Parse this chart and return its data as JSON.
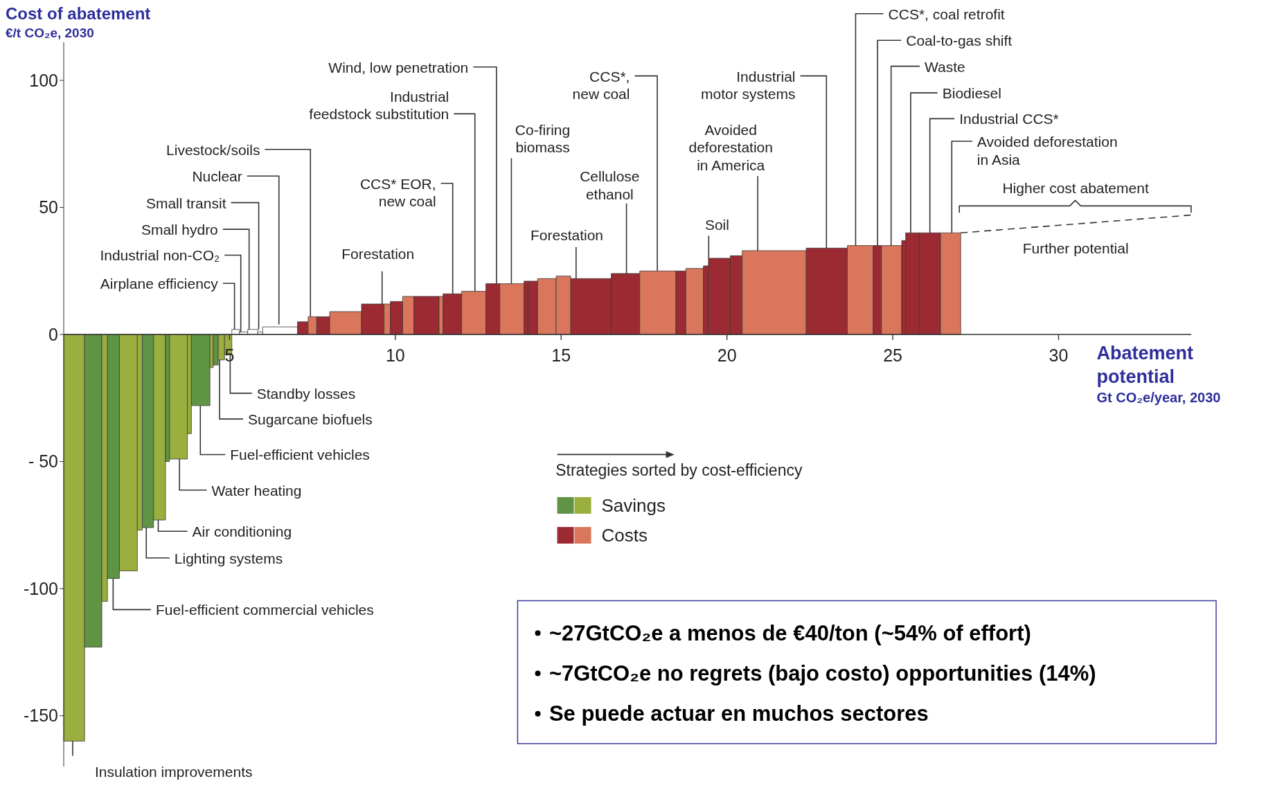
{
  "chart_data": {
    "type": "histogram",
    "ylabel": "Cost of abatement\n€/t CO₂e, 2030",
    "xlabel": "Abatement potential\nGt CO₂e/year, 2030",
    "xlim": [
      0,
      34
    ],
    "xticks": [
      5,
      10,
      15,
      20,
      25,
      30
    ],
    "ylim": [
      -170,
      115
    ],
    "yticks": [
      {
        "value": -150,
        "label": "-150"
      },
      {
        "value": -100,
        "label": "-100"
      },
      {
        "value": -50,
        "label": "- 50"
      },
      0,
      50,
      100
    ],
    "legend": "bottom",
    "series": [
      {
        "name": "Savings",
        "color": "#5e9444",
        "bins": [
          0,
          0.63,
          1.15,
          1.32,
          1.68,
          2.22,
          2.37,
          2.71,
          3.07,
          3.19,
          3.73,
          3.85,
          4.41,
          4.51,
          4.66,
          4.85,
          5.07
        ],
        "values": [
          -160,
          -123,
          -105,
          -96,
          -93,
          -77,
          -76,
          -73,
          -50,
          -49,
          -39,
          -28,
          -13,
          -12,
          -10,
          -8
        ],
        "colors": [
          "#9aaf3e",
          "#5e9444",
          "#9aaf3e",
          "#5e9444",
          "#9aaf3e",
          "#9aaf3e",
          "#5e9444",
          "#9aaf3e",
          "#5e9444",
          "#9aaf3e",
          "#9aaf3e",
          "#5e9444",
          "#9aaf3e",
          "#5e9444",
          "#9aaf3e",
          "#9aaf3e"
        ]
      },
      {
        "color": "#ffffff",
        "bins": [
          5.07,
          5.3,
          5.55,
          5.85,
          6.0,
          7.05
        ],
        "values": [
          2,
          1,
          2,
          1,
          3
        ]
      },
      {
        "name": "Costs",
        "color": "#9b2a32",
        "bins": [
          7.05,
          7.37,
          7.63,
          8.02,
          8.98,
          9.66,
          9.85,
          10.22,
          10.56,
          11.32,
          11.44,
          12.0,
          12.73,
          13.15,
          13.88,
          14.0,
          14.29,
          14.85,
          15.29,
          16.51,
          17.37,
          18.46,
          18.76,
          19.29,
          19.44,
          20.1,
          20.46,
          22.39,
          23.63,
          24.41,
          24.66,
          25.27,
          25.39,
          25.8,
          26.44,
          27.05
        ],
        "values": [
          5,
          7,
          7,
          9,
          12,
          12,
          13,
          15,
          15,
          15,
          16,
          17,
          20,
          20,
          21,
          21,
          22,
          23,
          22,
          24,
          25,
          25,
          26,
          27,
          30,
          31,
          33,
          34,
          35,
          35,
          35,
          37,
          40,
          40,
          40
        ],
        "colors": [
          "#9b2a32",
          "#d9765c",
          "#9b2a32",
          "#d9765c",
          "#9b2a32",
          "#d9765c",
          "#9b2a32",
          "#d9765c",
          "#9b2a32",
          "#d9765c",
          "#9b2a32",
          "#d9765c",
          "#9b2a32",
          "#d9765c",
          "#9b2a32",
          "#9b2a32",
          "#d9765c",
          "#d9765c",
          "#9b2a32",
          "#9b2a32",
          "#d9765c",
          "#9b2a32",
          "#d9765c",
          "#9b2a32",
          "#9b2a32",
          "#9b2a32",
          "#d9765c",
          "#9b2a32",
          "#d9765c",
          "#9b2a32",
          "#d9765c",
          "#9b2a32",
          "#9b2a32",
          "#9b2a32",
          "#d9765c"
        ]
      },
      {
        "type": "line",
        "color": "#333333",
        "line_style": "dashed",
        "marker": "none",
        "x": [
          27.05,
          34
        ],
        "values": [
          40,
          47
        ]
      }
    ],
    "annotations": [
      {
        "text": "Standby losses",
        "x": 5.02,
        "y": -8
      },
      {
        "text": "Sugarcane biofuels",
        "x": 4.7,
        "y": -10
      },
      {
        "text": "Fuel-efficient vehicles",
        "x": 4.12,
        "y": -28
      },
      {
        "text": "Water heating",
        "x": 3.49,
        "y": -49
      },
      {
        "text": "Air conditioning",
        "x": 2.85,
        "y": -73
      },
      {
        "text": "Lighting systems",
        "x": 2.49,
        "y": -76
      },
      {
        "text": "Fuel-efficient commercial vehicles",
        "x": 1.49,
        "y": -96
      },
      {
        "text": "Insulation improvements",
        "x": 0.27,
        "y": -160
      },
      {
        "text": "Airplane efficiency",
        "x": 5.15,
        "y": 2
      },
      {
        "text": "Industrial non-CO₂",
        "x": 5.34,
        "y": 1
      },
      {
        "text": "Small hydro",
        "x": 5.59,
        "y": 2
      },
      {
        "text": "Small transit",
        "x": 5.88,
        "y": 2
      },
      {
        "text": "Nuclear",
        "x": 6.49,
        "y": 4
      },
      {
        "text": "Livestock/soils",
        "x": 7.44,
        "y": 7
      },
      {
        "text": "Forestation",
        "x": 9.6,
        "y": 12
      },
      {
        "text": "CCS* EOR, new coal",
        "x": 11.73,
        "y": 16
      },
      {
        "text": "Industrial feedstock substitution",
        "x": 12.4,
        "y": 17
      },
      {
        "text": "Wind, low penetration",
        "x": 13.05,
        "y": 20
      },
      {
        "text": "Co-firing biomass",
        "x": 13.5,
        "y": 20
      },
      {
        "text": "Forestation",
        "x": 15.45,
        "y": 22
      },
      {
        "text": "CCS*, new coal",
        "x": 17.9,
        "y": 25
      },
      {
        "text": "Cellulose ethanol",
        "x": 16.97,
        "y": 24
      },
      {
        "text": "Soil",
        "x": 19.45,
        "y": 30
      },
      {
        "text": "Avoided deforestation in America",
        "x": 20.93,
        "y": 33
      },
      {
        "text": "Industrial motor systems",
        "x": 23.0,
        "y": 34
      },
      {
        "text": "CCS*, coal retrofit",
        "x": 23.88,
        "y": 35
      },
      {
        "text": "Coal-to-gas shift",
        "x": 24.54,
        "y": 35
      },
      {
        "text": "Waste",
        "x": 24.95,
        "y": 35
      },
      {
        "text": "Biodiesel",
        "x": 25.54,
        "y": 40
      },
      {
        "text": "Industrial CCS*",
        "x": 26.12,
        "y": 40
      },
      {
        "text": "Avoided deforestation in Asia",
        "x": 26.78,
        "y": 40
      },
      {
        "text": "Higher cost abatement",
        "x": 30.5,
        "y": 44
      },
      {
        "text": "Further potential",
        "x": 30.5,
        "y": 43
      },
      "Strategies sorted by cost-efficiency",
      "~27GtCO₂e a menos de €40/ton (~54% of effort)",
      "~7GtCO₂e no regrets (bajo costo) opportunities (14%)",
      "Se puede actuar en muchos sectores"
    ]
  }
}
